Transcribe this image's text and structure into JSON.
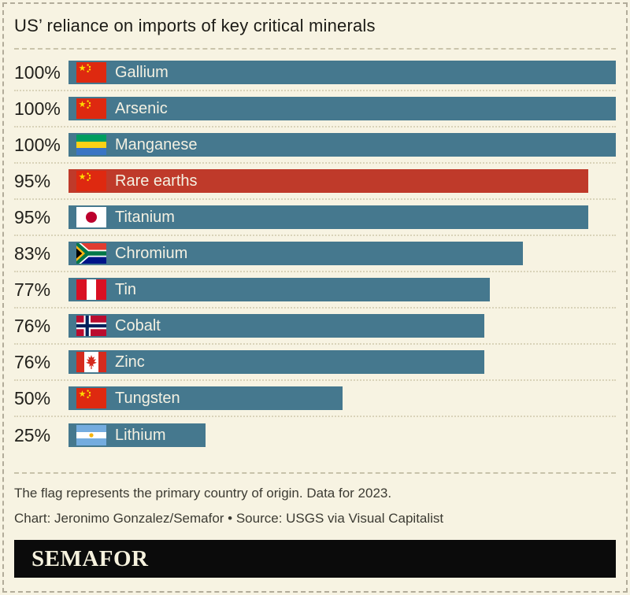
{
  "title": "US’ reliance on imports of key critical minerals",
  "colors": {
    "background": "#f7f3e2",
    "bar_default": "#45788e",
    "bar_highlight": "#bf3a2a",
    "bar_label_text": "#f4f1e2",
    "title_text": "#1c1b16",
    "footer_text": "#3c3b33",
    "logo_background": "#0b0b0b",
    "logo_text": "#f6f2de"
  },
  "chart_data": {
    "type": "bar",
    "orientation": "horizontal",
    "title": "US’ reliance on imports of key critical minerals",
    "unit": "%",
    "xlim": [
      0,
      100
    ],
    "grid": false,
    "legend": false,
    "rows": [
      {
        "value": 100,
        "value_label": "100%",
        "label": "Gallium",
        "flag": "china",
        "flag_icon": "china-flag-icon",
        "country": "China",
        "highlight": false
      },
      {
        "value": 100,
        "value_label": "100%",
        "label": "Arsenic",
        "flag": "china",
        "flag_icon": "china-flag-icon",
        "country": "China",
        "highlight": false
      },
      {
        "value": 100,
        "value_label": "100%",
        "label": "Manganese",
        "flag": "gabon",
        "flag_icon": "gabon-flag-icon",
        "country": "Gabon",
        "highlight": false
      },
      {
        "value": 95,
        "value_label": "95%",
        "label": "Rare earths",
        "flag": "china",
        "flag_icon": "china-flag-icon",
        "country": "China",
        "highlight": true
      },
      {
        "value": 95,
        "value_label": "95%",
        "label": "Titanium",
        "flag": "japan",
        "flag_icon": "japan-flag-icon",
        "country": "Japan",
        "highlight": false
      },
      {
        "value": 83,
        "value_label": "83%",
        "label": "Chromium",
        "flag": "south-africa",
        "flag_icon": "south-africa-flag-icon",
        "country": "South Africa",
        "highlight": false
      },
      {
        "value": 77,
        "value_label": "77%",
        "label": "Tin",
        "flag": "peru",
        "flag_icon": "peru-flag-icon",
        "country": "Peru",
        "highlight": false
      },
      {
        "value": 76,
        "value_label": "76%",
        "label": "Cobalt",
        "flag": "norway",
        "flag_icon": "norway-flag-icon",
        "country": "Norway",
        "highlight": false
      },
      {
        "value": 76,
        "value_label": "76%",
        "label": "Zinc",
        "flag": "canada",
        "flag_icon": "canada-flag-icon",
        "country": "Canada",
        "highlight": false
      },
      {
        "value": 50,
        "value_label": "50%",
        "label": "Tungsten",
        "flag": "china",
        "flag_icon": "china-flag-icon",
        "country": "China",
        "highlight": false
      },
      {
        "value": 25,
        "value_label": "25%",
        "label": "Lithium",
        "flag": "argentina",
        "flag_icon": "argentina-flag-icon",
        "country": "Argentina",
        "highlight": false
      }
    ]
  },
  "footer": {
    "note": "The flag represents the primary country of origin. Data for 2023.",
    "credit": "Chart: Jeronimo Gonzalez/Semafor • Source: USGS via Visual Capitalist",
    "logo": "SEMAFOR"
  }
}
